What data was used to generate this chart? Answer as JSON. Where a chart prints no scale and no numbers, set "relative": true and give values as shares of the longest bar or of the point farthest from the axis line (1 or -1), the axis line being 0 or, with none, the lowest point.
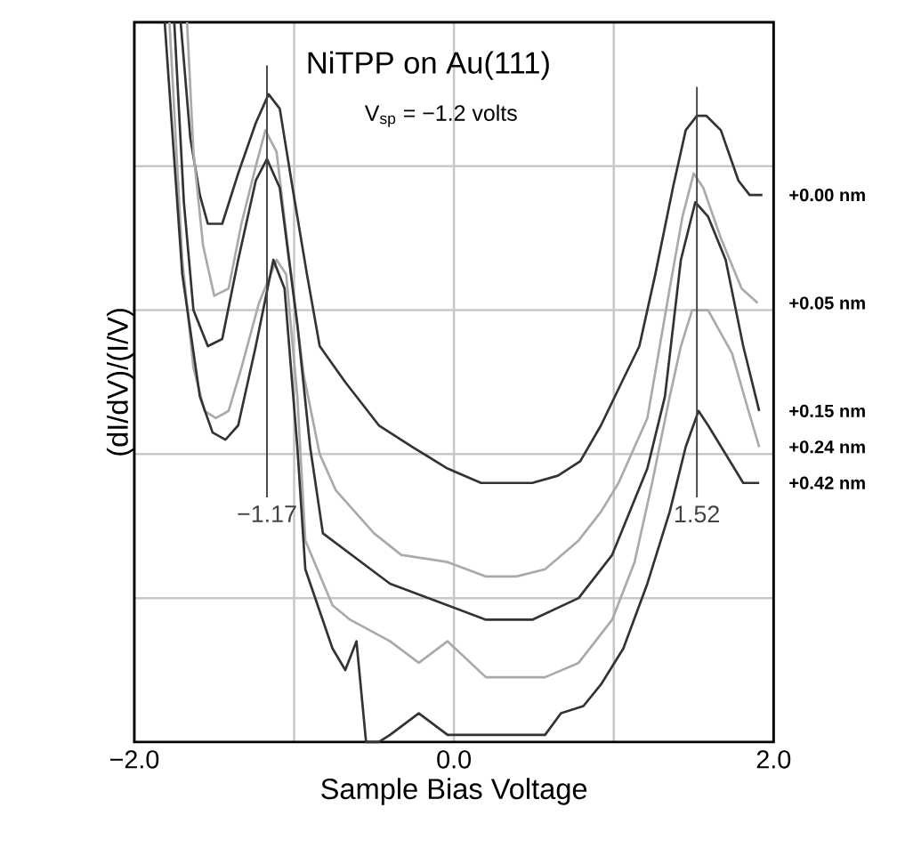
{
  "chart_data": {
    "type": "line",
    "title": "NiTPP on Au(111)",
    "subtitle": "V$_{sp}$ = −1.2 volts",
    "xlabel": "Sample Bias Voltage",
    "ylabel": "(dI/dV)/(I/V)",
    "relative": true,
    "xlim": [
      -2,
      2
    ],
    "xticks": [
      {
        "value": -2,
        "label": "−2.0"
      },
      {
        "value": -1,
        "label": null
      },
      {
        "value": 0,
        "label": "0.0"
      },
      {
        "value": 1,
        "label": null
      },
      {
        "value": 2,
        "label": "2.0"
      }
    ],
    "tick_labels": "x",
    "grid": true,
    "marker": "none",
    "ref_lines": [
      {
        "axis": "x",
        "value": -1.17,
        "label": "−1.17",
        "color": "#444444"
      },
      {
        "axis": "x",
        "value": 1.52,
        "label": "1.52",
        "color": "#444444"
      }
    ],
    "series": [
      {
        "name": "+0.00 nm",
        "color": "#333333",
        "x": [
          -1.71,
          -1.65,
          -1.59,
          -1.54,
          -1.45,
          -1.35,
          -1.24,
          -1.16,
          -1.09,
          -1.01,
          -0.92,
          -0.84,
          -0.68,
          -0.47,
          -0.26,
          -0.04,
          0.17,
          0.33,
          0.49,
          0.65,
          0.79,
          0.92,
          1.05,
          1.16,
          1.26,
          1.37,
          1.45,
          1.52,
          1.58,
          1.67,
          1.78,
          1.85,
          1.93
        ],
        "values": [
          1.0,
          0.84,
          0.76,
          0.72,
          0.72,
          0.79,
          0.86,
          0.9,
          0.88,
          0.77,
          0.65,
          0.55,
          0.5,
          0.44,
          0.41,
          0.38,
          0.36,
          0.36,
          0.36,
          0.37,
          0.39,
          0.44,
          0.5,
          0.55,
          0.65,
          0.77,
          0.85,
          0.87,
          0.87,
          0.85,
          0.78,
          0.76,
          0.76
        ]
      },
      {
        "name": "+0.05 nm",
        "color": "#aaaaaa",
        "x": [
          -1.67,
          -1.63,
          -1.57,
          -1.5,
          -1.41,
          -1.33,
          -1.24,
          -1.18,
          -1.11,
          -1.03,
          -0.94,
          -0.84,
          -0.74,
          -0.5,
          -0.33,
          -0.04,
          0.2,
          0.39,
          0.57,
          0.78,
          0.92,
          1.03,
          1.21,
          1.35,
          1.43,
          1.5,
          1.56,
          1.67,
          1.8,
          1.9
        ],
        "values": [
          1.0,
          0.82,
          0.69,
          0.62,
          0.63,
          0.72,
          0.8,
          0.85,
          0.82,
          0.67,
          0.51,
          0.4,
          0.35,
          0.29,
          0.26,
          0.25,
          0.23,
          0.23,
          0.24,
          0.28,
          0.32,
          0.36,
          0.45,
          0.63,
          0.73,
          0.79,
          0.77,
          0.7,
          0.63,
          0.61
        ]
      },
      {
        "name": "+0.15 nm",
        "color": "#333333",
        "x": [
          -1.75,
          -1.69,
          -1.63,
          -1.54,
          -1.45,
          -1.35,
          -1.24,
          -1.17,
          -1.09,
          -0.98,
          -0.9,
          -0.82,
          -0.58,
          -0.4,
          -0.04,
          0.2,
          0.49,
          0.78,
          0.99,
          1.21,
          1.32,
          1.42,
          1.51,
          1.59,
          1.7,
          1.81,
          1.91
        ],
        "values": [
          1.0,
          0.75,
          0.6,
          0.55,
          0.56,
          0.67,
          0.78,
          0.81,
          0.77,
          0.58,
          0.41,
          0.29,
          0.25,
          0.22,
          0.19,
          0.17,
          0.17,
          0.2,
          0.26,
          0.38,
          0.48,
          0.67,
          0.75,
          0.73,
          0.67,
          0.55,
          0.46
        ]
      },
      {
        "name": "+0.24 nm",
        "color": "#aaaaaa",
        "x": [
          -1.78,
          -1.7,
          -1.63,
          -1.56,
          -1.49,
          -1.41,
          -1.33,
          -1.22,
          -1.11,
          -1.05,
          -0.98,
          -0.93,
          -0.76,
          -0.65,
          -0.4,
          -0.22,
          -0.04,
          0.2,
          0.57,
          0.78,
          0.99,
          1.13,
          1.24,
          1.35,
          1.42,
          1.49,
          1.59,
          1.74,
          1.83,
          1.91
        ],
        "values": [
          1.0,
          0.67,
          0.52,
          0.46,
          0.45,
          0.46,
          0.52,
          0.61,
          0.67,
          0.65,
          0.48,
          0.28,
          0.19,
          0.17,
          0.14,
          0.11,
          0.14,
          0.09,
          0.09,
          0.11,
          0.17,
          0.25,
          0.36,
          0.48,
          0.55,
          0.6,
          0.6,
          0.54,
          0.47,
          0.41
        ]
      },
      {
        "name": "+0.42 nm",
        "color": "#333333",
        "x": [
          -1.81,
          -1.7,
          -1.59,
          -1.51,
          -1.43,
          -1.35,
          -1.24,
          -1.13,
          -1.06,
          -0.98,
          -0.93,
          -0.76,
          -0.68,
          -0.61,
          -0.55,
          -0.47,
          -0.4,
          -0.22,
          -0.04,
          0.06,
          0.39,
          0.57,
          0.67,
          0.81,
          0.92,
          1.06,
          1.21,
          1.35,
          1.45,
          1.53,
          1.59,
          1.7,
          1.81,
          1.91
        ],
        "values": [
          1.0,
          0.65,
          0.48,
          0.43,
          0.42,
          0.44,
          0.55,
          0.67,
          0.63,
          0.41,
          0.24,
          0.13,
          0.1,
          0.14,
          0.0,
          0.0,
          0.01,
          0.04,
          0.01,
          0.01,
          0.01,
          0.01,
          0.04,
          0.05,
          0.08,
          0.13,
          0.22,
          0.32,
          0.41,
          0.46,
          0.44,
          0.4,
          0.36,
          0.36
        ]
      }
    ]
  }
}
